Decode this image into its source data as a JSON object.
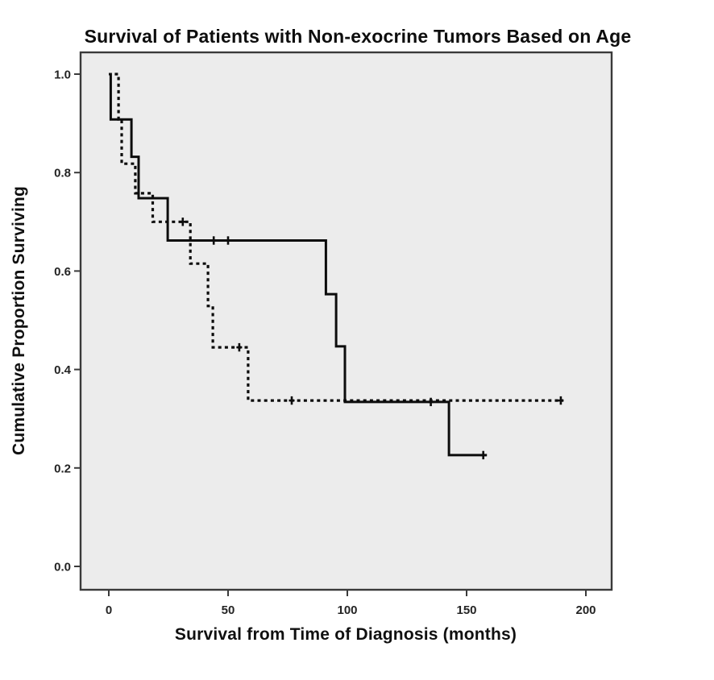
{
  "chart_data": {
    "type": "line",
    "subtype": "kaplan-meier-step",
    "title": "Survival of Patients with Non-exocrine Tumors Based on Age",
    "xlabel": "Survival from Time of Diagnosis (months)",
    "ylabel": "Cumulative Proportion Surviving",
    "grid": false,
    "legend": "none",
    "xlim": [
      -11.8,
      210.8
    ],
    "ylim": [
      -0.047,
      1.044
    ],
    "xticks": [
      {
        "t": 0,
        "label": "0"
      },
      {
        "t": 50,
        "label": "50"
      },
      {
        "t": 100,
        "label": "100"
      },
      {
        "t": 150,
        "label": "150"
      },
      {
        "t": 200,
        "label": "200"
      }
    ],
    "yticks": [
      {
        "v": 1.0,
        "label": "1.0"
      },
      {
        "v": 0.8,
        "label": "0.8"
      },
      {
        "v": 0.6,
        "label": "0.6"
      },
      {
        "v": 0.4,
        "label": "0.4"
      },
      {
        "v": 0.2,
        "label": "0.2"
      },
      {
        "v": 0.0,
        "label": "0.0"
      }
    ],
    "styles": {
      "plot_background": "#ececec",
      "frame_color": "#3a3a3a",
      "line_color": "#0c0c0c"
    },
    "series": [
      {
        "name": "solid-line-group",
        "line_style": "solid",
        "steps": [
          [
            0,
            1.0
          ],
          [
            0.8,
            0.908
          ],
          [
            9.5,
            0.832
          ],
          [
            12.5,
            0.748
          ],
          [
            24.7,
            0.662
          ],
          [
            91,
            0.553
          ],
          [
            95.3,
            0.447
          ],
          [
            99,
            0.334
          ],
          [
            142.6,
            0.226
          ]
        ],
        "end_t": 158.5,
        "censors": [
          [
            44,
            0.662
          ],
          [
            50,
            0.662
          ],
          [
            135,
            0.334
          ],
          [
            157,
            0.226
          ]
        ]
      },
      {
        "name": "dashed-line-group",
        "line_style": "dashed",
        "steps": [
          [
            2.5,
            1.0
          ],
          [
            4.1,
            0.908
          ],
          [
            5.4,
            0.818
          ],
          [
            11.1,
            0.758
          ],
          [
            18.4,
            0.7
          ],
          [
            34.2,
            0.615
          ],
          [
            41.6,
            0.529
          ],
          [
            43.6,
            0.445
          ],
          [
            58.4,
            0.337
          ]
        ],
        "end_t": 190.5,
        "censors": [
          [
            31,
            0.7
          ],
          [
            54.7,
            0.445
          ],
          [
            76.7,
            0.337
          ],
          [
            189.5,
            0.337
          ]
        ]
      }
    ]
  }
}
